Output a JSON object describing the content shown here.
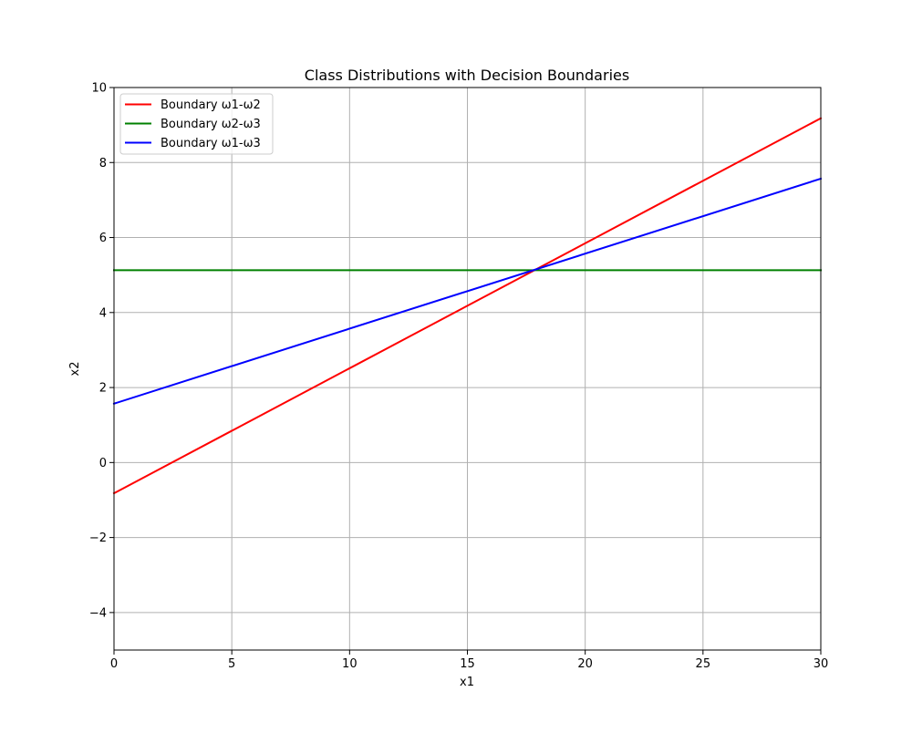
{
  "chart_data": {
    "type": "line",
    "title": "Class Distributions with Decision Boundaries",
    "xlabel": "x1",
    "ylabel": "x2",
    "xlim": [
      0,
      30
    ],
    "ylim": [
      -5,
      10
    ],
    "xticks": [
      0,
      5,
      10,
      15,
      20,
      25,
      30
    ],
    "yticks": [
      -4,
      -2,
      0,
      2,
      4,
      6,
      8,
      10
    ],
    "grid": true,
    "legend_position": "upper-left",
    "series": [
      {
        "name": "Boundary ω1-ω2",
        "color": "#ff0000",
        "x": [
          0,
          30
        ],
        "y": [
          -0.82,
          9.18
        ]
      },
      {
        "name": "Boundary ω2-ω3",
        "color": "#008000",
        "x": [
          0,
          30
        ],
        "y": [
          5.13,
          5.13
        ]
      },
      {
        "name": "Boundary ω1-ω3",
        "color": "#0000ff",
        "x": [
          0,
          30
        ],
        "y": [
          1.57,
          7.57
        ]
      }
    ]
  }
}
